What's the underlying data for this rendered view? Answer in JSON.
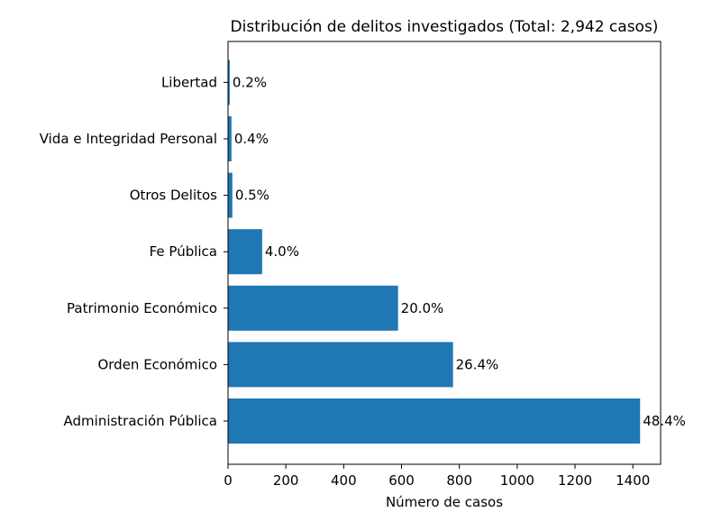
{
  "chart_data": {
    "type": "bar",
    "orientation": "horizontal",
    "title": "Distribución de delitos investigados (Total: 2,942 casos)",
    "xlabel": "Número de casos",
    "ylabel": "",
    "categories": [
      "Administración Pública",
      "Orden Económico",
      "Patrimonio Económico",
      "Fe Pública",
      "Otros Delitos",
      "Vida e Integridad Personal",
      "Libertad"
    ],
    "values": [
      1425,
      778,
      588,
      118,
      15,
      12,
      6
    ],
    "data_labels": [
      "48.4%",
      "26.4%",
      "20.0%",
      "4.0%",
      "0.5%",
      "0.4%",
      "0.2%"
    ],
    "xlim": [
      0,
      1496
    ],
    "xticks": [
      0,
      200,
      400,
      600,
      800,
      1000,
      1200,
      1400
    ],
    "grid": false,
    "bar_color": "#1f77b4"
  }
}
